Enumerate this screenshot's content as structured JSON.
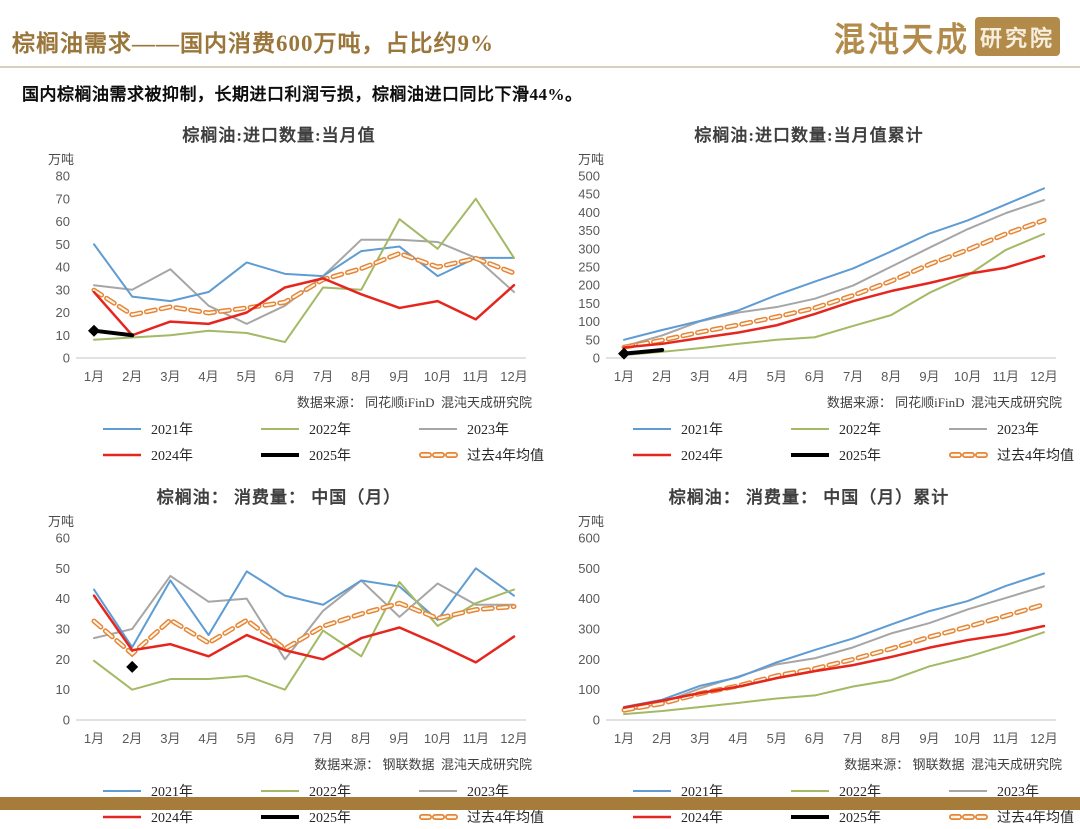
{
  "header": {
    "title": "棕榈油需求——国内消费600万吨，占比约9%",
    "logo_text": "混沌天成",
    "logo_badge": "研究院",
    "accent_color": "#9A763B"
  },
  "subtitle": "国内棕榈油需求被抑制，长期进口利润亏损，棕榈油进口同比下滑44%。",
  "footer": {
    "bar_color": "#A67C3B"
  },
  "series_styles": {
    "2021年": {
      "color": "#5E9CD3",
      "width": 2
    },
    "2022年": {
      "color": "#A3B964",
      "width": 2
    },
    "2023年": {
      "color": "#A6A6A6",
      "width": 2
    },
    "2024年": {
      "color": "#E5261F",
      "width": 2.5
    },
    "2025年": {
      "color": "#000000",
      "width": 4
    },
    "过去4年均值": {
      "color": "#E58637",
      "width": 5,
      "dash": true,
      "inner": "#FFF7EC"
    }
  },
  "legend": {
    "items": [
      "2021年",
      "2022年",
      "2023年",
      "2024年",
      "2025年",
      "过去4年均值"
    ]
  },
  "chart_data": [
    {
      "type": "line",
      "title": "棕榈油:进口数量:当月值",
      "ylabel": "万吨",
      "source": "数据来源： 同花顺iFinD  混沌天成研究院",
      "x": [
        "1月",
        "2月",
        "3月",
        "4月",
        "5月",
        "6月",
        "7月",
        "8月",
        "9月",
        "10月",
        "11月",
        "12月"
      ],
      "ylim": [
        0,
        80
      ],
      "ystep": 10,
      "grid": false,
      "legend_position": "bottom",
      "series": [
        {
          "name": "2023年",
          "values": [
            32,
            30,
            39,
            23,
            15,
            23,
            36,
            52,
            52,
            51,
            44,
            29
          ]
        },
        {
          "name": "2021年",
          "values": [
            50,
            27,
            25,
            29,
            42,
            37,
            36,
            47,
            49,
            36,
            44,
            44
          ]
        },
        {
          "name": "2022年",
          "values": [
            8,
            9,
            10,
            12,
            11,
            7,
            31,
            30,
            61,
            48,
            70,
            44
          ]
        },
        {
          "name": "过去4年均值",
          "values": [
            29.8,
            19,
            22.5,
            19.8,
            22,
            24.5,
            34.5,
            39.3,
            46,
            40,
            43.8,
            37.3
          ]
        },
        {
          "name": "2024年",
          "values": [
            29,
            10,
            16,
            15,
            20,
            31,
            35,
            28,
            22,
            25,
            17,
            32
          ]
        },
        {
          "name": "2025年",
          "values": [
            12,
            10,
            null,
            null,
            null,
            null,
            null,
            null,
            null,
            null,
            null,
            null
          ],
          "markers": [
            0
          ]
        }
      ]
    },
    {
      "type": "line",
      "title": "棕榈油:进口数量:当月值累计",
      "ylabel": "万吨",
      "source": "数据来源： 同花顺iFinD  混沌天成研究院",
      "x": [
        "1月",
        "2月",
        "3月",
        "4月",
        "5月",
        "6月",
        "7月",
        "8月",
        "9月",
        "10月",
        "11月",
        "12月"
      ],
      "ylim": [
        0,
        500
      ],
      "ystep": 50,
      "grid": false,
      "legend_position": "bottom",
      "series": [
        {
          "name": "2023年",
          "values": [
            32,
            62,
            101,
            125,
            140,
            163,
            199,
            251,
            303,
            354,
            398,
            434
          ]
        },
        {
          "name": "2021年",
          "values": [
            50,
            77,
            102,
            131,
            173,
            210,
            246,
            293,
            342,
            378,
            422,
            466
          ]
        },
        {
          "name": "2022年",
          "values": [
            8,
            17,
            27,
            39,
            50,
            57,
            88,
            118,
            179,
            227,
            297,
            341
          ]
        },
        {
          "name": "过去4年均值",
          "values": [
            29.8,
            48.8,
            71.3,
            91,
            113,
            137.5,
            172,
            211.3,
            257.3,
            297.3,
            341,
            378.3
          ]
        },
        {
          "name": "2024年",
          "values": [
            29,
            39,
            55,
            70,
            90,
            121,
            156,
            184,
            206,
            231,
            248,
            280
          ]
        },
        {
          "name": "2025年",
          "values": [
            12,
            22,
            null,
            null,
            null,
            null,
            null,
            null,
            null,
            null,
            null,
            null
          ],
          "markers": [
            0
          ]
        }
      ]
    },
    {
      "type": "line",
      "title": "棕榈油： 消费量： 中国（月）",
      "ylabel": "万吨",
      "source": "数据来源： 钢联数据  混沌天成研究院",
      "x": [
        "1月",
        "2月",
        "3月",
        "4月",
        "5月",
        "6月",
        "7月",
        "8月",
        "9月",
        "10月",
        "11月",
        "12月"
      ],
      "ylim": [
        0,
        60
      ],
      "ystep": 10,
      "grid": false,
      "legend_position": "bottom",
      "series": [
        {
          "name": "2023年",
          "values": [
            27,
            30,
            47.5,
            39,
            40,
            20,
            36,
            46,
            34,
            45,
            38,
            38
          ]
        },
        {
          "name": "2021年",
          "values": [
            43,
            24,
            46,
            28,
            49,
            41,
            38,
            46,
            44,
            33,
            50,
            41
          ]
        },
        {
          "name": "2022年",
          "values": [
            19.5,
            10,
            13.5,
            13.5,
            14.5,
            10,
            29.5,
            21,
            45.5,
            31,
            38.5,
            43
          ]
        },
        {
          "name": "过去4年均值",
          "values": [
            32.6,
            21.8,
            33,
            25.4,
            32.9,
            23.5,
            30.9,
            35,
            38.5,
            33.5,
            36.4,
            37.4
          ]
        },
        {
          "name": "2024年",
          "values": [
            41,
            23,
            25,
            21,
            28,
            23,
            20,
            27,
            30.5,
            25,
            19,
            27.5
          ]
        },
        {
          "name": "2025年",
          "values": [
            null,
            17.5,
            null,
            null,
            null,
            null,
            null,
            null,
            null,
            null,
            null,
            null
          ],
          "markers": [
            1
          ]
        }
      ]
    },
    {
      "type": "line",
      "title": "棕榈油： 消费量： 中国（月）累计",
      "ylabel": "万吨",
      "source": "数据来源： 钢联数据  混沌天成研究院",
      "x": [
        "1月",
        "2月",
        "3月",
        "4月",
        "5月",
        "6月",
        "7月",
        "8月",
        "9月",
        "10月",
        "11月",
        "12月"
      ],
      "ylim": [
        0,
        600
      ],
      "ystep": 100,
      "grid": false,
      "legend_position": "bottom",
      "series": [
        {
          "name": "2023年",
          "values": [
            27,
            57,
            104.5,
            143.5,
            183.5,
            203.5,
            239.5,
            285.5,
            319.5,
            364.5,
            402.5,
            440.5
          ]
        },
        {
          "name": "2021年",
          "values": [
            43,
            67,
            113,
            141,
            190,
            231,
            269,
            315,
            359,
            392,
            442,
            483
          ]
        },
        {
          "name": "2022年",
          "values": [
            19.5,
            29.5,
            43,
            56.5,
            71,
            81,
            110.5,
            131.5,
            177,
            208,
            246.5,
            289.5
          ]
        },
        {
          "name": "过去4年均值",
          "values": [
            32.6,
            54.4,
            87.4,
            112.8,
            145.7,
            169.2,
            200.1,
            235.1,
            273.6,
            307.1,
            343.5,
            380.9
          ]
        },
        {
          "name": "2024年",
          "values": [
            41,
            64,
            89,
            110,
            138,
            161,
            181,
            208,
            238.5,
            263.5,
            282.5,
            310
          ]
        }
      ]
    }
  ]
}
